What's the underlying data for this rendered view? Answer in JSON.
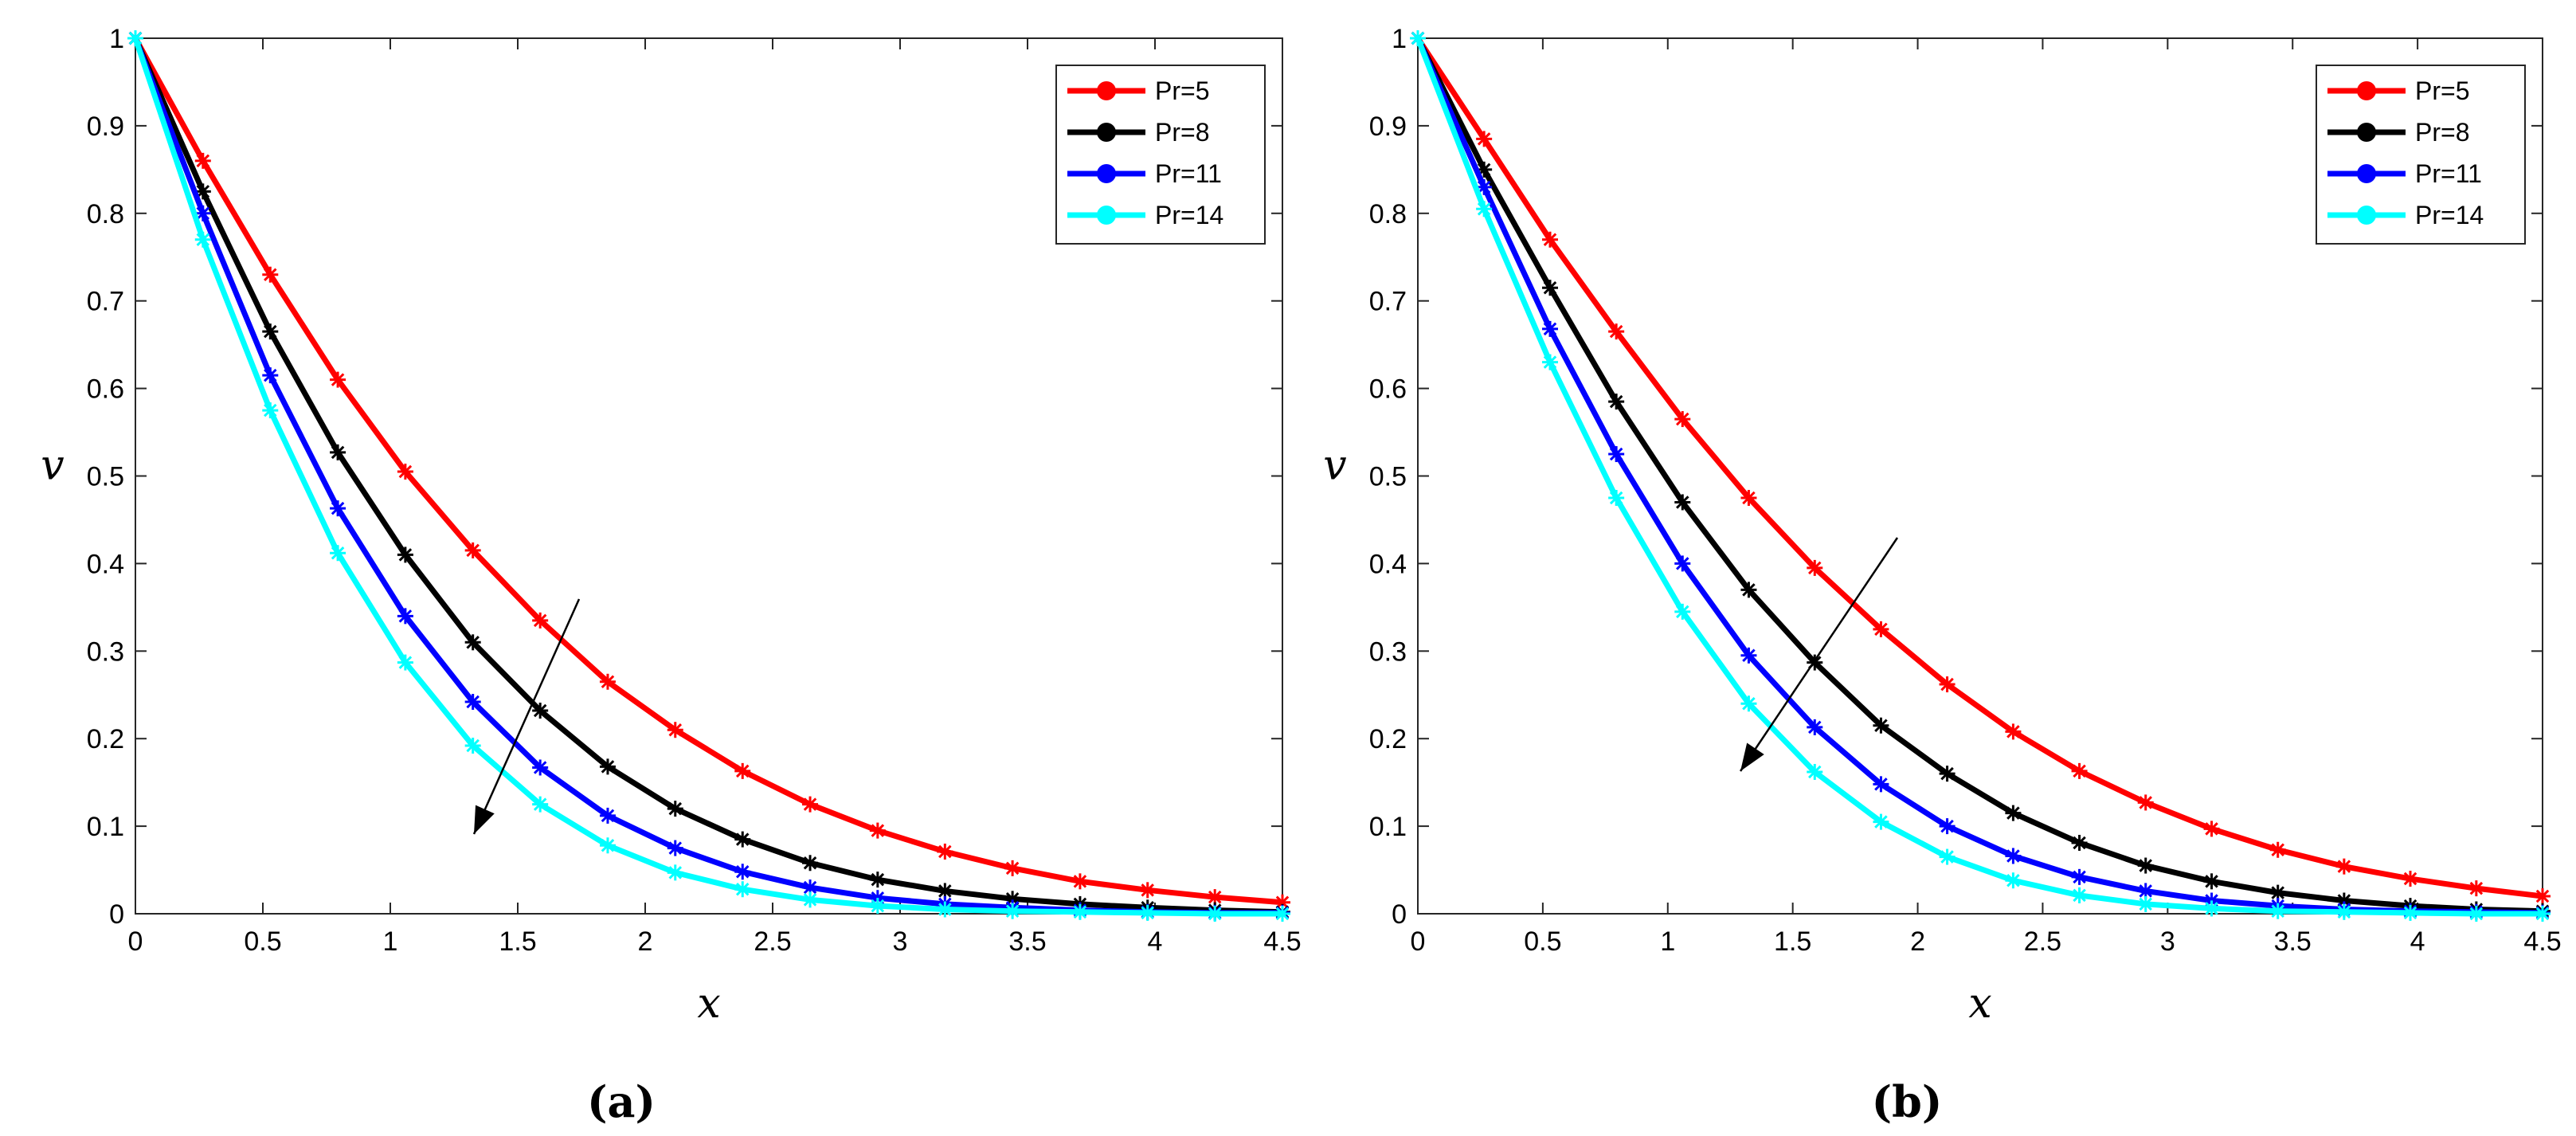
{
  "chart_data": [
    {
      "type": "line",
      "caption": "(a)",
      "xlabel": "x",
      "ylabel": "v",
      "xlim": [
        0,
        4.5
      ],
      "ylim": [
        0,
        1
      ],
      "xticks": [
        "0",
        "0.5",
        "1",
        "1.5",
        "2",
        "2.5",
        "3",
        "3.5",
        "4",
        "4.5"
      ],
      "yticks": [
        "0",
        "0.1",
        "0.2",
        "0.3",
        "0.4",
        "0.5",
        "0.6",
        "0.7",
        "0.8",
        "0.9",
        "1"
      ],
      "legend_position": "top-right",
      "annotation": "arrow indicating decreasing v with increasing Pr",
      "x": [
        0,
        0.265,
        0.529,
        0.794,
        1.059,
        1.324,
        1.588,
        1.853,
        2.118,
        2.382,
        2.647,
        2.912,
        3.176,
        3.441,
        3.706,
        3.971,
        4.235,
        4.5
      ],
      "series": [
        {
          "name": "Pr=5",
          "color": "#ff0000",
          "values": [
            1,
            0.86,
            0.73,
            0.61,
            0.505,
            0.415,
            0.335,
            0.265,
            0.21,
            0.163,
            0.125,
            0.095,
            0.071,
            0.052,
            0.037,
            0.027,
            0.019,
            0.013
          ]
        },
        {
          "name": "Pr=8",
          "color": "#000000",
          "values": [
            1,
            0.825,
            0.665,
            0.527,
            0.41,
            0.31,
            0.232,
            0.168,
            0.12,
            0.085,
            0.058,
            0.039,
            0.026,
            0.017,
            0.011,
            0.007,
            0.004,
            0.002
          ]
        },
        {
          "name": "Pr=11",
          "color": "#0000ff",
          "values": [
            1,
            0.8,
            0.615,
            0.463,
            0.34,
            0.242,
            0.167,
            0.112,
            0.075,
            0.048,
            0.03,
            0.018,
            0.011,
            0.007,
            0.004,
            0.002,
            0.001,
            0.001
          ]
        },
        {
          "name": "Pr=14",
          "color": "#00ffff",
          "values": [
            1,
            0.77,
            0.575,
            0.412,
            0.287,
            0.192,
            0.125,
            0.078,
            0.047,
            0.028,
            0.016,
            0.009,
            0.005,
            0.003,
            0.002,
            0.001,
            0,
            0
          ]
        }
      ]
    },
    {
      "type": "line",
      "caption": "(b)",
      "xlabel": "x",
      "ylabel": "v",
      "xlim": [
        0,
        4.5
      ],
      "ylim": [
        0,
        1
      ],
      "xticks": [
        "0",
        "0.5",
        "1",
        "1.5",
        "2",
        "2.5",
        "3",
        "3.5",
        "4",
        "4.5"
      ],
      "yticks": [
        "0",
        "0.1",
        "0.2",
        "0.3",
        "0.4",
        "0.5",
        "0.6",
        "0.7",
        "0.8",
        "0.9",
        "1"
      ],
      "legend_position": "top-right",
      "annotation": "arrow indicating decreasing v with increasing Pr",
      "x": [
        0,
        0.265,
        0.529,
        0.794,
        1.059,
        1.324,
        1.588,
        1.853,
        2.118,
        2.382,
        2.647,
        2.912,
        3.176,
        3.441,
        3.706,
        3.971,
        4.235,
        4.5
      ],
      "series": [
        {
          "name": "Pr=5",
          "color": "#ff0000",
          "values": [
            1,
            0.885,
            0.77,
            0.665,
            0.565,
            0.475,
            0.395,
            0.325,
            0.262,
            0.208,
            0.163,
            0.127,
            0.097,
            0.073,
            0.054,
            0.04,
            0.029,
            0.02
          ]
        },
        {
          "name": "Pr=8",
          "color": "#000000",
          "values": [
            1,
            0.85,
            0.715,
            0.585,
            0.47,
            0.37,
            0.287,
            0.215,
            0.16,
            0.115,
            0.081,
            0.055,
            0.037,
            0.024,
            0.015,
            0.009,
            0.005,
            0.003
          ]
        },
        {
          "name": "Pr=11",
          "color": "#0000ff",
          "values": [
            1,
            0.83,
            0.668,
            0.525,
            0.4,
            0.295,
            0.213,
            0.148,
            0.1,
            0.066,
            0.042,
            0.026,
            0.015,
            0.009,
            0.005,
            0.003,
            0.002,
            0.001
          ]
        },
        {
          "name": "Pr=14",
          "color": "#00ffff",
          "values": [
            1,
            0.805,
            0.63,
            0.475,
            0.345,
            0.24,
            0.162,
            0.105,
            0.065,
            0.038,
            0.021,
            0.011,
            0.006,
            0.003,
            0.002,
            0.001,
            0,
            0
          ]
        }
      ]
    }
  ]
}
